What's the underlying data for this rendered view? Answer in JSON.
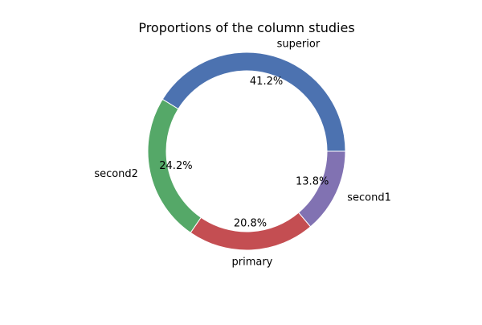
{
  "chart_data": {
    "type": "pie",
    "variant": "donut",
    "title": "Proportions of the column studies",
    "slices": [
      {
        "label": "superior",
        "value": 41.2,
        "pct_label": "41.2%",
        "color": "#4c72b0"
      },
      {
        "label": "second2",
        "value": 24.2,
        "pct_label": "24.2%",
        "color": "#55a868"
      },
      {
        "label": "primary",
        "value": 20.8,
        "pct_label": "20.8%",
        "color": "#c44e52"
      },
      {
        "label": "second1",
        "value": 13.8,
        "pct_label": "13.8%",
        "color": "#8172b2"
      }
    ],
    "start_angle_deg": 0,
    "direction": "counterclockwise",
    "legend": "none"
  }
}
